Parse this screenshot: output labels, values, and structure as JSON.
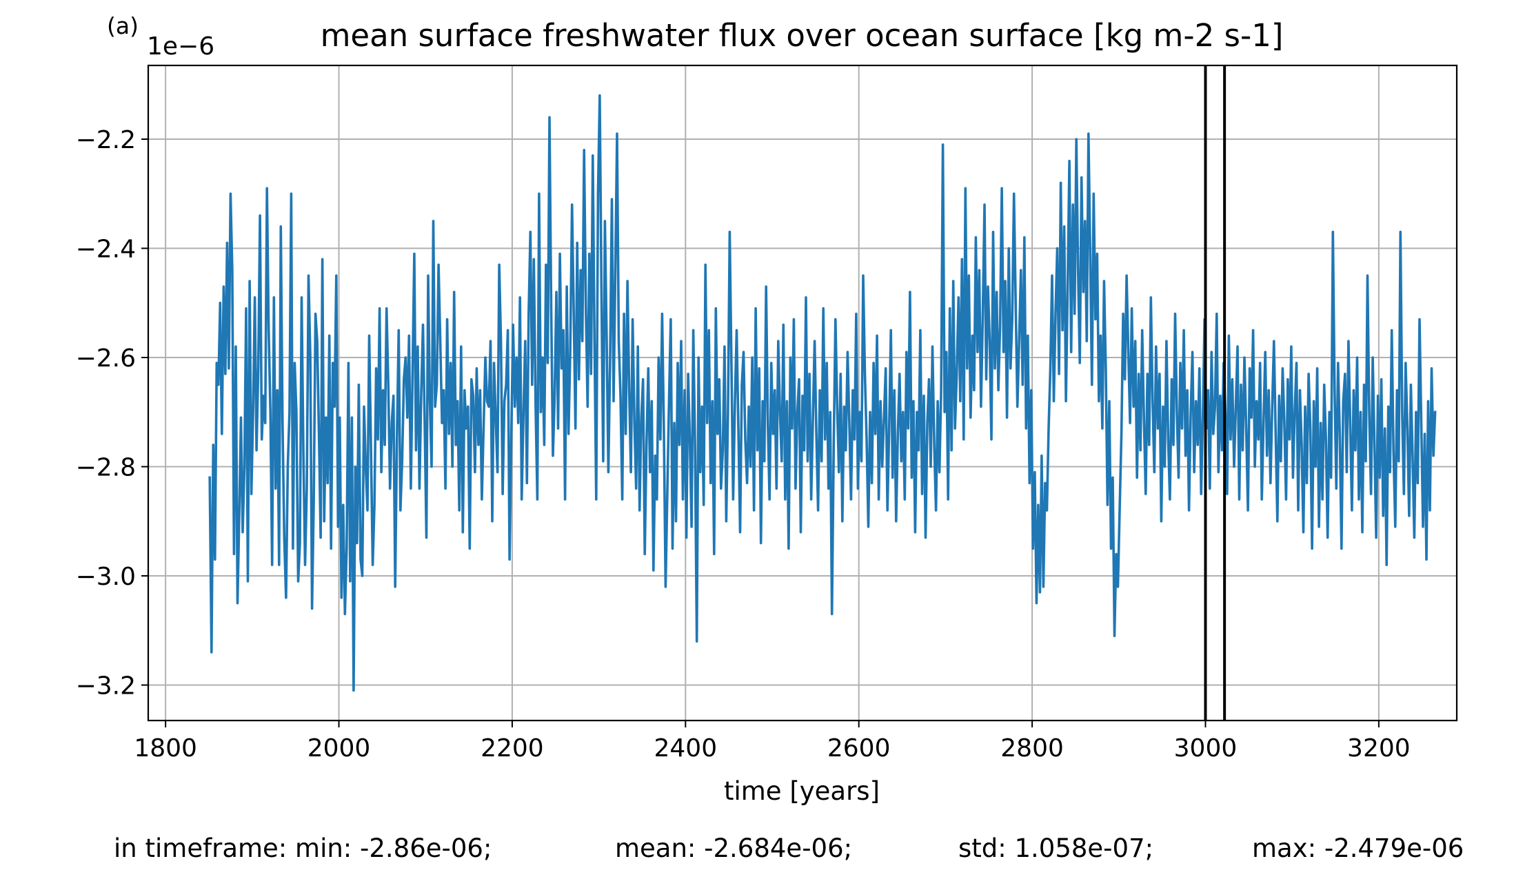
{
  "panel_label": "(a)",
  "chart_data": {
    "type": "line",
    "title": "mean surface freshwater flux over ocean surface [kg m-2 s-1]",
    "xlabel": "time [years]",
    "ylabel": "",
    "y_offset_label": "1e−6",
    "y_scale_factor": 1e-06,
    "xlim": [
      1780,
      3290
    ],
    "ylim": [
      -3.265,
      -2.065
    ],
    "x_ticks": [
      1800,
      2000,
      2200,
      2400,
      2600,
      2800,
      3000,
      3200
    ],
    "x_tick_labels": [
      "1800",
      "2000",
      "2200",
      "2400",
      "2600",
      "2800",
      "3000",
      "3200"
    ],
    "y_ticks": [
      -3.2,
      -3.0,
      -2.8,
      -2.6,
      -2.4,
      -2.2
    ],
    "y_tick_labels": [
      "−3.2",
      "−3.0",
      "−2.8",
      "−2.6",
      "−2.4",
      "−2.2"
    ],
    "grid": true,
    "line_color": "#1f77b4",
    "vlines": {
      "x": [
        3000,
        3022
      ],
      "color": "#000000"
    },
    "series": [
      {
        "x_start": 1851,
        "x_step": 2,
        "values": [
          -2.82,
          -3.14,
          -2.76,
          -2.97,
          -2.61,
          -2.65,
          -2.5,
          -2.74,
          -2.47,
          -2.63,
          -2.39,
          -2.62,
          -2.3,
          -2.44,
          -2.96,
          -2.58,
          -3.05,
          -2.89,
          -2.71,
          -2.92,
          -2.8,
          -2.51,
          -3.01,
          -2.46,
          -2.85,
          -2.7,
          -2.49,
          -2.77,
          -2.62,
          -2.34,
          -2.75,
          -2.67,
          -2.72,
          -2.29,
          -2.55,
          -2.7,
          -2.98,
          -2.49,
          -2.84,
          -2.66,
          -2.98,
          -2.36,
          -2.72,
          -2.93,
          -3.04,
          -2.8,
          -2.7,
          -2.3,
          -2.95,
          -2.61,
          -2.7,
          -3.01,
          -2.94,
          -2.49,
          -2.77,
          -2.98,
          -2.84,
          -2.45,
          -2.6,
          -3.06,
          -2.86,
          -2.52,
          -2.57,
          -2.74,
          -2.93,
          -2.42,
          -2.9,
          -2.71,
          -2.83,
          -2.56,
          -2.95,
          -2.61,
          -2.69,
          -2.45,
          -2.91,
          -2.71,
          -3.04,
          -2.87,
          -3.07,
          -2.95,
          -2.61,
          -3.01,
          -2.71,
          -3.21,
          -2.8,
          -2.94,
          -2.65,
          -2.97,
          -3.0,
          -2.69,
          -2.8,
          -2.88,
          -2.56,
          -2.76,
          -2.98,
          -2.87,
          -2.62,
          -2.75,
          -2.51,
          -2.81,
          -2.66,
          -2.76,
          -2.51,
          -2.65,
          -2.84,
          -2.72,
          -2.67,
          -3.02,
          -2.75,
          -2.55,
          -2.88,
          -2.79,
          -2.64,
          -2.6,
          -2.71,
          -2.56,
          -2.84,
          -2.63,
          -2.41,
          -2.77,
          -2.58,
          -2.84,
          -2.67,
          -2.54,
          -2.72,
          -2.93,
          -2.45,
          -2.68,
          -2.8,
          -2.35,
          -2.69,
          -2.65,
          -2.43,
          -2.57,
          -2.72,
          -2.66,
          -2.84,
          -2.53,
          -2.74,
          -2.61,
          -2.8,
          -2.48,
          -2.76,
          -2.68,
          -2.88,
          -2.58,
          -2.92,
          -2.66,
          -2.73,
          -2.69,
          -2.95,
          -2.64,
          -2.67,
          -2.81,
          -2.62,
          -2.76,
          -2.66,
          -2.86,
          -2.73,
          -2.6,
          -2.68,
          -2.69,
          -2.57,
          -2.9,
          -2.61,
          -2.71,
          -2.81,
          -2.43,
          -2.57,
          -2.85,
          -2.68,
          -2.65,
          -2.55,
          -2.97,
          -2.74,
          -2.54,
          -2.69,
          -2.6,
          -2.72,
          -2.49,
          -2.86,
          -2.7,
          -2.57,
          -2.83,
          -2.52,
          -2.37,
          -2.65,
          -2.42,
          -2.69,
          -2.86,
          -2.3,
          -2.7,
          -2.6,
          -2.76,
          -2.43,
          -2.61,
          -2.16,
          -2.51,
          -2.78,
          -2.67,
          -2.48,
          -2.73,
          -2.41,
          -2.62,
          -2.55,
          -2.86,
          -2.47,
          -2.74,
          -2.59,
          -2.32,
          -2.52,
          -2.73,
          -2.39,
          -2.64,
          -2.44,
          -2.57,
          -2.22,
          -2.51,
          -2.69,
          -2.41,
          -2.63,
          -2.23,
          -2.57,
          -2.86,
          -2.3,
          -2.12,
          -2.48,
          -2.79,
          -2.35,
          -2.56,
          -2.81,
          -2.6,
          -2.31,
          -2.68,
          -2.44,
          -2.19,
          -2.57,
          -2.67,
          -2.86,
          -2.52,
          -2.74,
          -2.46,
          -2.66,
          -2.81,
          -2.53,
          -2.72,
          -2.84,
          -2.58,
          -2.88,
          -2.71,
          -2.64,
          -2.96,
          -2.76,
          -2.62,
          -2.81,
          -2.68,
          -2.99,
          -2.78,
          -2.86,
          -2.6,
          -2.75,
          -2.52,
          -2.73,
          -3.02,
          -2.85,
          -2.68,
          -2.53,
          -2.95,
          -2.72,
          -2.9,
          -2.61,
          -2.76,
          -2.57,
          -2.86,
          -2.66,
          -2.93,
          -2.63,
          -2.75,
          -2.91,
          -2.55,
          -2.76,
          -3.12,
          -2.6,
          -2.81,
          -2.69,
          -2.87,
          -2.43,
          -2.72,
          -2.55,
          -2.83,
          -2.68,
          -2.96,
          -2.51,
          -2.74,
          -2.64,
          -2.84,
          -2.77,
          -2.58,
          -2.9,
          -2.7,
          -2.37,
          -2.61,
          -2.86,
          -2.68,
          -2.55,
          -2.73,
          -2.92,
          -2.65,
          -2.59,
          -2.75,
          -2.83,
          -2.69,
          -2.8,
          -2.6,
          -2.88,
          -2.51,
          -2.77,
          -2.62,
          -2.94,
          -2.68,
          -2.79,
          -2.47,
          -2.72,
          -2.86,
          -2.61,
          -2.74,
          -2.66,
          -2.84,
          -2.57,
          -2.7,
          -2.79,
          -2.54,
          -2.86,
          -2.68,
          -2.95,
          -2.6,
          -2.73,
          -2.53,
          -2.84,
          -2.7,
          -2.64,
          -2.92,
          -2.67,
          -2.77,
          -2.49,
          -2.79,
          -2.63,
          -2.86,
          -2.71,
          -2.57,
          -2.74,
          -2.88,
          -2.66,
          -2.79,
          -2.51,
          -2.75,
          -2.61,
          -2.84,
          -2.7,
          -3.07,
          -2.76,
          -2.53,
          -2.69,
          -2.81,
          -2.63,
          -2.9,
          -2.69,
          -2.77,
          -2.59,
          -2.72,
          -2.86,
          -2.66,
          -2.75,
          -2.52,
          -2.84,
          -2.7,
          -2.79,
          -2.45,
          -2.63,
          -2.75,
          -2.91,
          -2.7,
          -2.83,
          -2.61,
          -2.74,
          -2.56,
          -2.86,
          -2.68,
          -2.8,
          -2.71,
          -2.62,
          -2.88,
          -2.73,
          -2.55,
          -2.82,
          -2.66,
          -2.9,
          -2.74,
          -2.63,
          -2.79,
          -2.7,
          -2.86,
          -2.59,
          -2.73,
          -2.48,
          -2.82,
          -2.68,
          -2.92,
          -2.7,
          -2.77,
          -2.55,
          -2.85,
          -2.67,
          -2.93,
          -2.72,
          -2.64,
          -2.8,
          -2.58,
          -2.76,
          -2.88,
          -2.68,
          -2.81,
          -2.66,
          -2.21,
          -2.7,
          -2.59,
          -2.86,
          -2.51,
          -2.77,
          -2.46,
          -2.73,
          -2.63,
          -2.49,
          -2.68,
          -2.42,
          -2.75,
          -2.29,
          -2.62,
          -2.45,
          -2.71,
          -2.56,
          -2.66,
          -2.38,
          -2.59,
          -2.44,
          -2.69,
          -2.53,
          -2.32,
          -2.64,
          -2.47,
          -2.57,
          -2.75,
          -2.37,
          -2.62,
          -2.48,
          -2.66,
          -2.54,
          -2.29,
          -2.59,
          -2.46,
          -2.71,
          -2.4,
          -2.62,
          -2.53,
          -2.3,
          -2.5,
          -2.69,
          -2.57,
          -2.44,
          -2.65,
          -2.38,
          -2.73,
          -2.56,
          -2.83,
          -2.66,
          -2.95,
          -2.81,
          -3.05,
          -2.87,
          -3.03,
          -2.78,
          -3.02,
          -2.83,
          -2.88,
          -2.73,
          -2.62,
          -2.45,
          -2.68,
          -2.52,
          -2.4,
          -2.63,
          -2.28,
          -2.55,
          -2.36,
          -2.68,
          -2.47,
          -2.24,
          -2.59,
          -2.32,
          -2.52,
          -2.2,
          -2.44,
          -2.61,
          -2.27,
          -2.48,
          -2.35,
          -2.57,
          -2.19,
          -2.41,
          -2.65,
          -2.3,
          -2.53,
          -2.41,
          -2.68,
          -2.56,
          -2.73,
          -2.46,
          -2.62,
          -2.87,
          -2.68,
          -2.95,
          -2.82,
          -3.11,
          -2.96,
          -3.02,
          -2.88,
          -2.74,
          -2.52,
          -2.64,
          -2.45,
          -2.59,
          -2.72,
          -2.51,
          -2.69,
          -2.57,
          -2.82,
          -2.63,
          -2.77,
          -2.55,
          -2.71,
          -2.85,
          -2.63,
          -2.76,
          -2.49,
          -2.68,
          -2.81,
          -2.58,
          -2.73,
          -2.63,
          -2.9,
          -2.69,
          -2.8,
          -2.57,
          -2.75,
          -2.86,
          -2.64,
          -2.76,
          -2.52,
          -2.7,
          -2.82,
          -2.61,
          -2.73,
          -2.55,
          -2.78,
          -2.66,
          -2.88,
          -2.7,
          -2.59,
          -2.81,
          -2.68,
          -2.76,
          -2.62,
          -2.85,
          -2.71,
          -2.53,
          -2.73,
          -2.66,
          -2.84,
          -2.59,
          -2.74,
          -2.69,
          -2.52,
          -2.81,
          -2.67,
          -2.77,
          -2.61,
          -2.7,
          -2.85,
          -2.56,
          -2.75,
          -2.64,
          -2.8,
          -2.69,
          -2.58,
          -2.86,
          -2.65,
          -2.77,
          -2.6,
          -2.73,
          -2.88,
          -2.62,
          -2.71,
          -2.55,
          -2.8,
          -2.68,
          -2.75,
          -2.61,
          -2.86,
          -2.72,
          -2.59,
          -2.78,
          -2.66,
          -2.83,
          -2.69,
          -2.57,
          -2.74,
          -2.9,
          -2.67,
          -2.79,
          -2.62,
          -2.72,
          -2.86,
          -2.64,
          -2.75,
          -2.58,
          -2.82,
          -2.7,
          -2.61,
          -2.88,
          -2.66,
          -2.76,
          -2.92,
          -2.69,
          -2.83,
          -2.63,
          -2.73,
          -2.95,
          -2.68,
          -2.8,
          -2.62,
          -2.91,
          -2.72,
          -2.86,
          -2.65,
          -2.75,
          -2.93,
          -2.7,
          -2.82,
          -2.37,
          -2.66,
          -2.84,
          -2.61,
          -2.74,
          -2.95,
          -2.68,
          -2.63,
          -2.81,
          -2.57,
          -2.72,
          -2.88,
          -2.66,
          -2.77,
          -2.6,
          -2.86,
          -2.7,
          -2.92,
          -2.65,
          -2.79,
          -2.45,
          -2.7,
          -2.85,
          -2.6,
          -2.76,
          -2.93,
          -2.67,
          -2.82,
          -2.64,
          -2.89,
          -2.73,
          -2.98,
          -2.69,
          -2.81,
          -2.55,
          -2.77,
          -2.91,
          -2.66,
          -2.79,
          -2.37,
          -2.7,
          -2.85,
          -2.61,
          -2.73,
          -2.89,
          -2.65,
          -2.78,
          -2.93,
          -2.7,
          -2.83,
          -2.53,
          -2.72,
          -2.91,
          -2.74,
          -2.97,
          -2.68,
          -2.88,
          -2.62,
          -2.78,
          -2.7
        ],
        "note_values": "y values in units of 1e-6 kg m-2 s-1"
      }
    ]
  },
  "stats": {
    "min": "in timeframe: min: -2.86e-06;",
    "mean": "mean: -2.684e-06;",
    "std": "std: 1.058e-07;",
    "max": "max: -2.479e-06"
  }
}
